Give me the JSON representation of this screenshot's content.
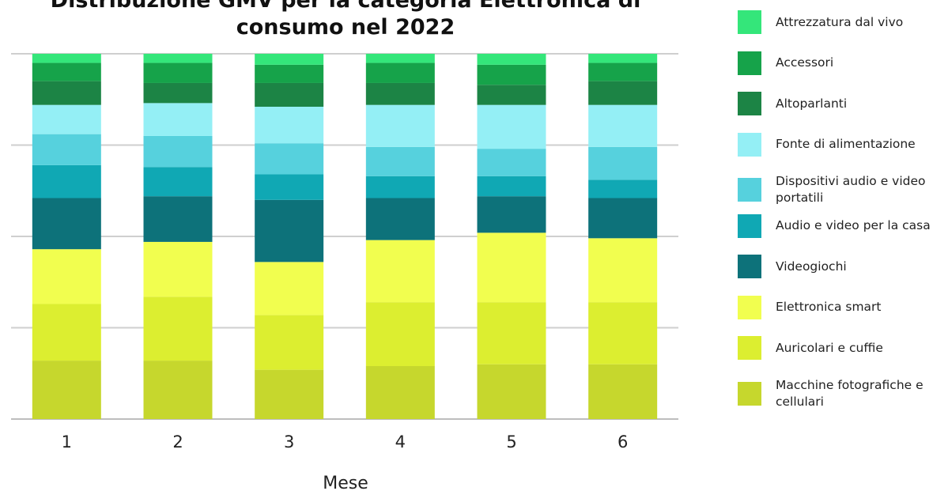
{
  "chart_data": {
    "type": "bar",
    "stacked": true,
    "title_lines": [
      "Distribuzione GMV per la categoria Elettronica di",
      "consumo nel 2022"
    ],
    "xlabel": "Mese",
    "ylabel": "",
    "categories": [
      "1",
      "2",
      "3",
      "4",
      "5",
      "6"
    ],
    "ylim": [
      0,
      100
    ],
    "grid": true,
    "legend_position": "right",
    "series": [
      {
        "name": "Macchine fotografiche e cellulari",
        "color": "#C6D72D",
        "values": [
          16,
          16,
          13.5,
          14.5,
          15,
          15
        ]
      },
      {
        "name": "Auricolari e cuffie",
        "color": "#DCEE30",
        "values": [
          15.5,
          17.5,
          15,
          17.5,
          17,
          17
        ]
      },
      {
        "name": "Elettronica smart",
        "color": "#F1FE4F",
        "values": [
          15,
          15,
          14.5,
          17,
          19,
          17.5
        ]
      },
      {
        "name": "Videogiochi",
        "color": "#0D727A",
        "values": [
          14,
          12.5,
          17,
          11.5,
          10,
          11
        ]
      },
      {
        "name": "Audio e video per la casa",
        "color": "#10A8B4",
        "values": [
          9,
          8,
          7,
          6,
          5.5,
          5
        ]
      },
      {
        "name": "Dispositivi audio e video portatili",
        "color": "#56D1DD",
        "values": [
          8.5,
          8.5,
          8.5,
          8,
          7.5,
          9
        ]
      },
      {
        "name": "Fonte di alimentazione",
        "color": "#94EFF5",
        "values": [
          8,
          9,
          10,
          11.5,
          12,
          11.5
        ]
      },
      {
        "name": "Altoparlanti",
        "color": "#1C8445",
        "values": [
          6.5,
          5.5,
          6.5,
          6,
          5.5,
          6.5
        ]
      },
      {
        "name": "Accessori",
        "color": "#16A34A",
        "values": [
          5,
          5.5,
          5,
          5.5,
          5.5,
          5
        ]
      },
      {
        "name": "Attrezzatura dal vivo",
        "color": "#34E67A",
        "values": [
          2.5,
          2.5,
          3,
          2.5,
          3,
          2.5
        ]
      }
    ]
  }
}
